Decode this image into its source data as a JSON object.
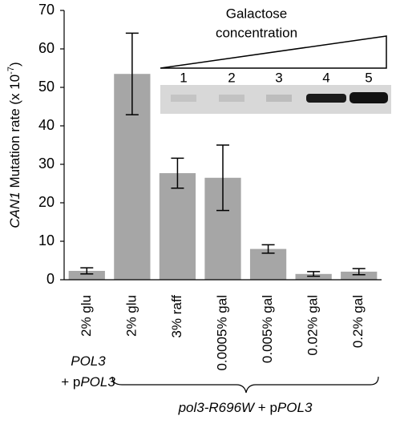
{
  "chart_data": {
    "type": "bar",
    "y_label": {
      "gene": "CAN1",
      "text": " Mutation rate (x 10",
      "exponent": "-7",
      "close": ")"
    },
    "categories": [
      "2% glu",
      "2% glu",
      "3% raff",
      "0.0005% gal",
      "0.005% gal",
      "0.02% gal",
      "0.2% gal"
    ],
    "values": [
      2.3,
      53.5,
      27.7,
      26.5,
      8,
      1.5,
      2.1
    ],
    "errors": [
      0.8,
      10.6,
      3.9,
      8.5,
      1.1,
      0.6,
      0.8
    ],
    "color": "#a6a6a6",
    "ylim": [
      0,
      70
    ],
    "yticks": [
      0,
      10,
      20,
      30,
      40,
      50,
      60,
      70
    ],
    "groups": [
      {
        "lines": [
          [
            {
              "text": "POL3",
              "italic": true
            }
          ],
          [
            {
              "text": "+ p",
              "italic": false
            },
            {
              "text": "POL3",
              "italic": true
            }
          ]
        ]
      },
      {
        "lines": [
          [
            {
              "text": "pol3-R696W",
              "italic": true
            },
            {
              "text": " + p",
              "italic": false
            },
            {
              "text": "POL3",
              "italic": true
            }
          ]
        ]
      }
    ],
    "inset": {
      "title": [
        "Galactose",
        "concentration"
      ],
      "lanes": [
        "1",
        "2",
        "3",
        "4",
        "5"
      ]
    }
  }
}
